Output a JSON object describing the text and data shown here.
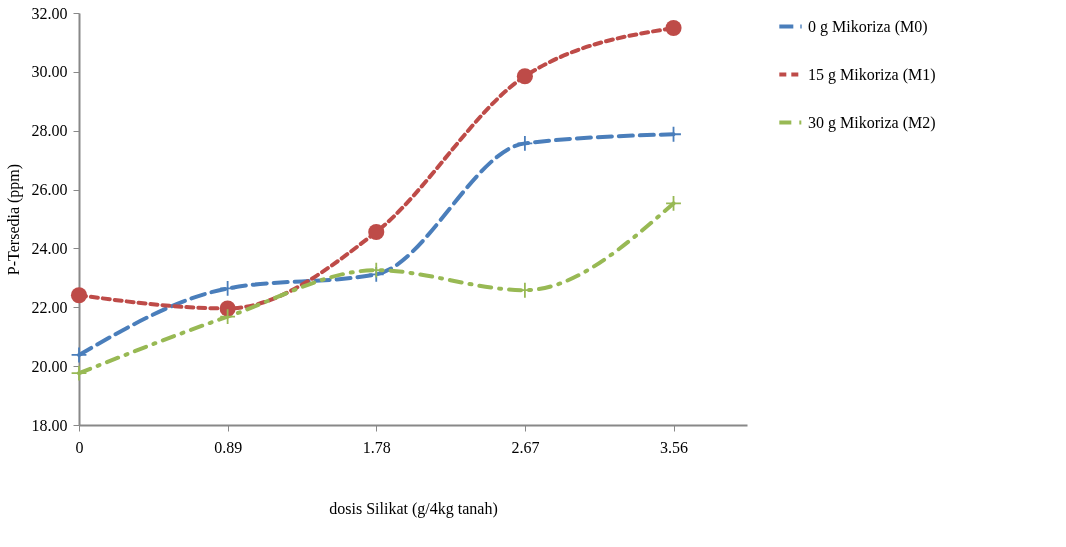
{
  "chart_data": {
    "type": "line",
    "xlabel": "dosis Silikat (g/4kg tanah)",
    "ylabel": "P-Tersedia (ppm)",
    "x": [
      0,
      0.89,
      1.78,
      2.67,
      3.56
    ],
    "xlim": [
      0,
      4
    ],
    "xticks": [
      0,
      0.89,
      1.78,
      2.67,
      3.56
    ],
    "ylim": [
      18,
      32
    ],
    "yticks": [
      {
        "value": 18,
        "label": "18.00"
      },
      {
        "value": 20,
        "label": "20.00"
      },
      {
        "value": 22,
        "label": "22.00"
      },
      {
        "value": 24,
        "label": "24.00"
      },
      {
        "value": 26,
        "label": "26.00"
      },
      {
        "value": 28,
        "label": "28.00"
      },
      {
        "value": 30,
        "label": "30.00"
      },
      {
        "value": 32,
        "label": "32.00"
      }
    ],
    "grid": false,
    "legend": "right",
    "line_style": "dashed",
    "series": [
      {
        "name": "0 g Mikoriza (M0)",
        "color": "#4a7ebb",
        "marker": "cross",
        "values": [
          20.38,
          22.64,
          23.12,
          27.57,
          27.88
        ]
      },
      {
        "name": "15 g Mikoriza (M1)",
        "color": "#be4b48",
        "marker": "circle",
        "values": [
          22.41,
          21.96,
          24.56,
          29.85,
          31.49
        ]
      },
      {
        "name": "30 g Mikoriza (M2)",
        "color": "#98b954",
        "marker": "cross",
        "values": [
          19.76,
          21.68,
          23.26,
          22.58,
          25.53
        ]
      }
    ]
  }
}
